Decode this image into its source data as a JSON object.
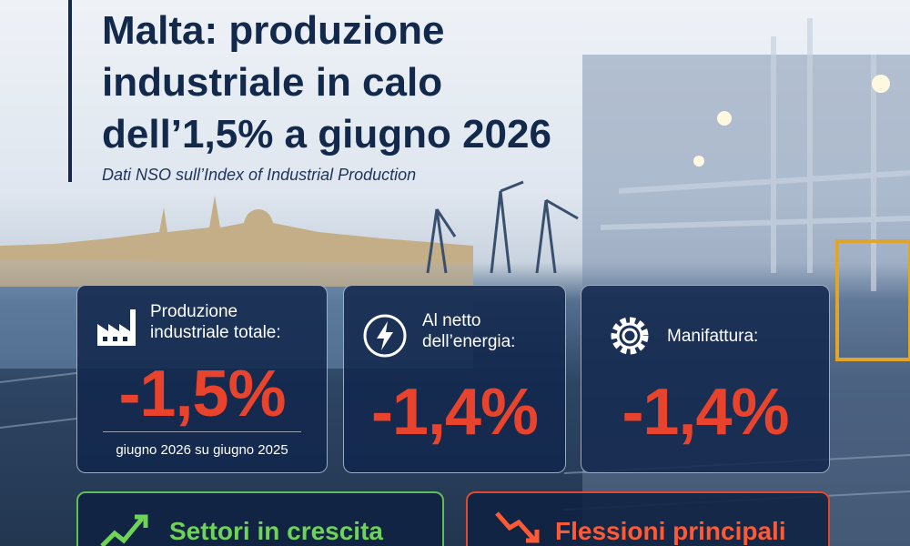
{
  "header": {
    "title_lines": [
      "Malta: produzione",
      "industriale in calo",
      "dell’1,5% a giugno 2026"
    ],
    "subtitle": "Dati NSO sull’Index of Industrial Production"
  },
  "cards": [
    {
      "label": "Produzione industriale totale:",
      "value": "-1,5%",
      "note": "giugno 2026 su giugno 2025"
    },
    {
      "label": "Al netto dell’energia:",
      "value": "-1,4%"
    },
    {
      "label": "Manifattura:",
      "value": "-1,4%"
    }
  ],
  "bottom_cards": [
    {
      "title": "Settori in crescita"
    },
    {
      "title": "Flessioni principali"
    }
  ]
}
